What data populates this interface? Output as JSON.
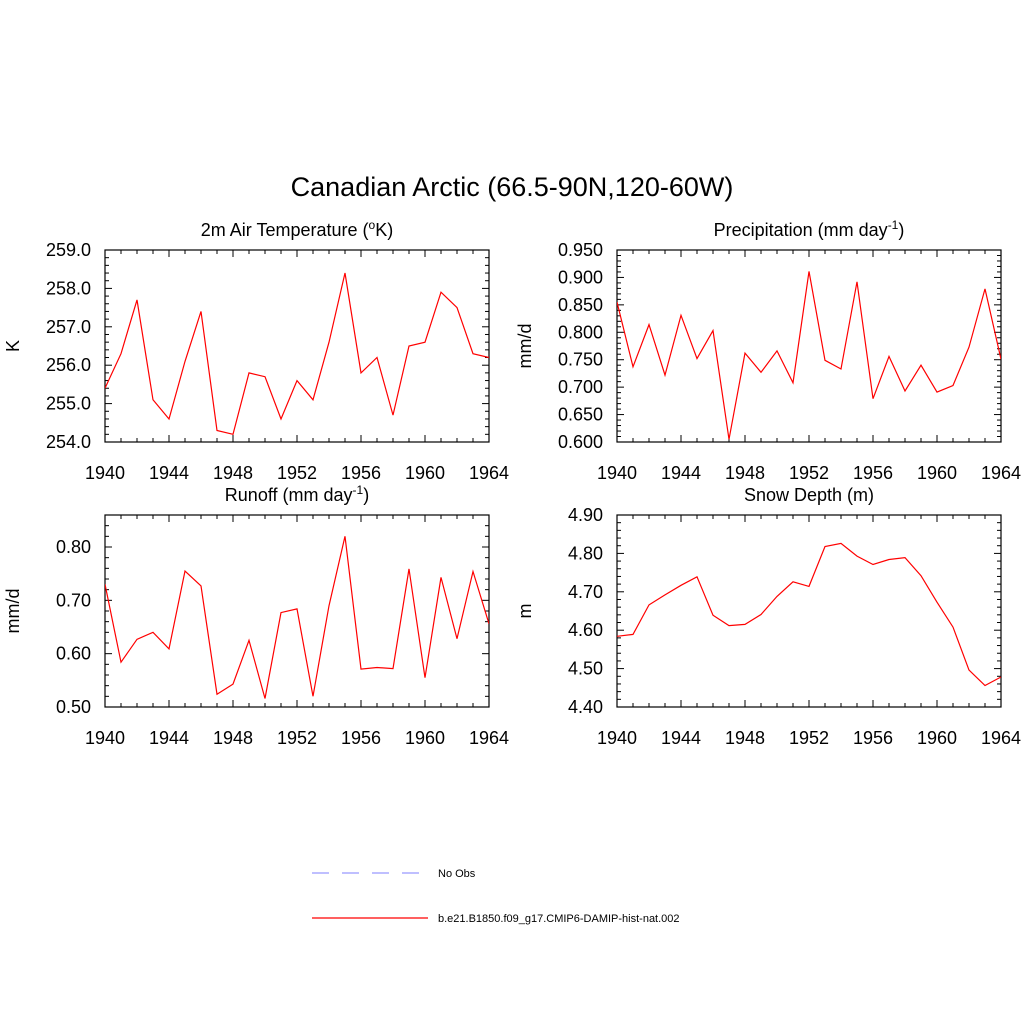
{
  "figure": {
    "title": "Canadian Arctic (66.5-90N,120-60W)"
  },
  "legend": {
    "items": [
      {
        "label": "No Obs",
        "color": "#9999ff",
        "style": "dashed"
      },
      {
        "label": "b.e21.B1850.f09_g17.CMIP6-DAMIP-hist-nat.002",
        "color": "#ff0000",
        "style": "solid"
      }
    ]
  },
  "chart_data": [
    {
      "type": "line",
      "title": "2m Air Temperature (°K)",
      "title_parts": [
        "2m Air Temperature (",
        "o",
        "K)"
      ],
      "ylabel": "K",
      "xlim": [
        1940,
        1964
      ],
      "ylim": [
        254.0,
        259.0
      ],
      "xticks": [
        "1940",
        "1944",
        "1948",
        "1952",
        "1956",
        "1960",
        "1964"
      ],
      "yticks": [
        "254.0",
        "255.0",
        "256.0",
        "257.0",
        "258.0",
        "259.0"
      ],
      "grid": false,
      "series": [
        {
          "color": "#ff0000",
          "x": [
            1940,
            1941,
            1942,
            1943,
            1944,
            1945,
            1946,
            1947,
            1948,
            1949,
            1950,
            1951,
            1952,
            1953,
            1954,
            1955,
            1956,
            1957,
            1958,
            1959,
            1960,
            1961,
            1962,
            1963,
            1964
          ],
          "values": [
            255.4,
            256.3,
            257.7,
            255.1,
            254.6,
            256.1,
            257.4,
            254.3,
            254.2,
            255.8,
            255.7,
            254.6,
            255.6,
            255.1,
            256.6,
            258.4,
            255.8,
            256.2,
            254.7,
            256.5,
            256.6,
            257.9,
            257.5,
            256.3,
            256.2
          ]
        }
      ]
    },
    {
      "type": "line",
      "title": "Precipitation (mm day-1)",
      "title_parts": [
        "Precipitation (mm day",
        "-1",
        ")"
      ],
      "ylabel": "mm/d",
      "xlim": [
        1940,
        1964
      ],
      "ylim": [
        0.6,
        0.95
      ],
      "xticks": [
        "1940",
        "1944",
        "1948",
        "1952",
        "1956",
        "1960",
        "1964"
      ],
      "yticks": [
        "0.600",
        "0.650",
        "0.700",
        "0.750",
        "0.800",
        "0.850",
        "0.900",
        "0.950"
      ],
      "grid": false,
      "series": [
        {
          "color": "#ff0000",
          "x": [
            1940,
            1941,
            1942,
            1943,
            1944,
            1945,
            1946,
            1947,
            1948,
            1949,
            1950,
            1951,
            1952,
            1953,
            1954,
            1955,
            1956,
            1957,
            1958,
            1959,
            1960,
            1961,
            1962,
            1963,
            1964
          ],
          "values": [
            0.855,
            0.737,
            0.814,
            0.722,
            0.831,
            0.752,
            0.803,
            0.605,
            0.762,
            0.727,
            0.766,
            0.708,
            0.911,
            0.749,
            0.733,
            0.892,
            0.679,
            0.756,
            0.693,
            0.74,
            0.691,
            0.703,
            0.773,
            0.879,
            0.751
          ]
        }
      ]
    },
    {
      "type": "line",
      "title": "Runoff (mm day-1)",
      "title_parts": [
        "Runoff (mm day",
        "-1",
        ")"
      ],
      "ylabel": "mm/d",
      "xlim": [
        1940,
        1964
      ],
      "ylim": [
        0.5,
        0.86
      ],
      "xticks": [
        "1940",
        "1944",
        "1948",
        "1952",
        "1956",
        "1960",
        "1964"
      ],
      "yticks": [
        "0.50",
        "0.60",
        "0.70",
        "0.80"
      ],
      "yticks_values": [
        0.5,
        0.6,
        0.7,
        0.8
      ],
      "grid": false,
      "series": [
        {
          "color": "#ff0000",
          "x": [
            1940,
            1941,
            1942,
            1943,
            1944,
            1945,
            1946,
            1947,
            1948,
            1949,
            1950,
            1951,
            1952,
            1953,
            1954,
            1955,
            1956,
            1957,
            1958,
            1959,
            1960,
            1961,
            1962,
            1963,
            1964
          ],
          "values": [
            0.73,
            0.584,
            0.627,
            0.64,
            0.609,
            0.755,
            0.727,
            0.524,
            0.543,
            0.625,
            0.516,
            0.677,
            0.684,
            0.52,
            0.69,
            0.82,
            0.571,
            0.574,
            0.572,
            0.759,
            0.555,
            0.743,
            0.628,
            0.754,
            0.656
          ]
        }
      ]
    },
    {
      "type": "line",
      "title": "Snow Depth (m)",
      "title_parts": [
        "Snow Depth (m)",
        "",
        ""
      ],
      "ylabel": "m",
      "xlim": [
        1940,
        1964
      ],
      "ylim": [
        4.4,
        4.9
      ],
      "xticks": [
        "1940",
        "1944",
        "1948",
        "1952",
        "1956",
        "1960",
        "1964"
      ],
      "yticks": [
        "4.40",
        "4.50",
        "4.60",
        "4.70",
        "4.80",
        "4.90"
      ],
      "grid": false,
      "series": [
        {
          "color": "#ff0000",
          "x": [
            1940,
            1941,
            1942,
            1943,
            1944,
            1945,
            1946,
            1947,
            1948,
            1949,
            1950,
            1951,
            1952,
            1953,
            1954,
            1955,
            1956,
            1957,
            1958,
            1959,
            1960,
            1961,
            1962,
            1963,
            1964
          ],
          "values": [
            4.584,
            4.589,
            4.666,
            4.692,
            4.717,
            4.739,
            4.639,
            4.612,
            4.615,
            4.641,
            4.688,
            4.726,
            4.714,
            4.818,
            4.826,
            4.793,
            4.771,
            4.784,
            4.789,
            4.742,
            4.673,
            4.608,
            4.496,
            4.456,
            4.478
          ]
        }
      ]
    }
  ]
}
